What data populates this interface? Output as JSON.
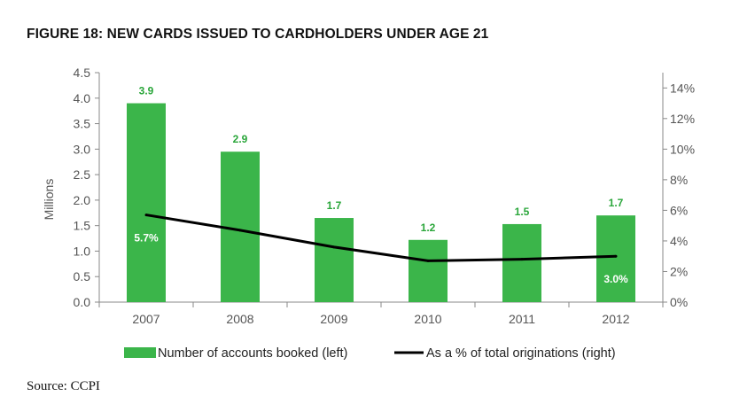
{
  "title": "FIGURE 18: NEW CARDS ISSUED TO CARDHOLDERS UNDER AGE 21",
  "source": "Source: CCPI",
  "colors": {
    "bar": "#3bb54a",
    "bar_label": "#2aa63a",
    "line": "#000000",
    "inside_label": "#ffffff",
    "axis": "#888888"
  },
  "chart_data": {
    "type": "bar",
    "categories": [
      "2007",
      "2008",
      "2009",
      "2010",
      "2011",
      "2012"
    ],
    "series": [
      {
        "name": "Number of accounts booked (left)",
        "type": "bar",
        "axis": "left",
        "values": [
          3.9,
          2.95,
          1.65,
          1.22,
          1.53,
          1.7
        ],
        "labels": [
          "3.9",
          "2.9",
          "1.7",
          "1.2",
          "1.5",
          "1.7"
        ]
      },
      {
        "name": "As a % of total originations (right)",
        "type": "line",
        "axis": "right",
        "values": [
          5.7,
          4.7,
          3.6,
          2.7,
          2.8,
          3.0
        ],
        "labels": [
          "5.7%",
          "",
          "",
          "",
          "",
          "3.0%"
        ]
      }
    ],
    "ylabel": "Millions",
    "ylim": [
      0,
      4.5
    ],
    "yticks": [
      "0.0",
      "0.5",
      "1.0",
      "1.5",
      "2.0",
      "2.5",
      "3.0",
      "3.5",
      "4.0",
      "4.5"
    ],
    "y2lim": [
      0,
      15
    ],
    "y2ticks": [
      "0%",
      "2%",
      "4%",
      "6%",
      "8%",
      "10%",
      "12%",
      "14%"
    ],
    "grid": false,
    "legend": "bottom"
  }
}
